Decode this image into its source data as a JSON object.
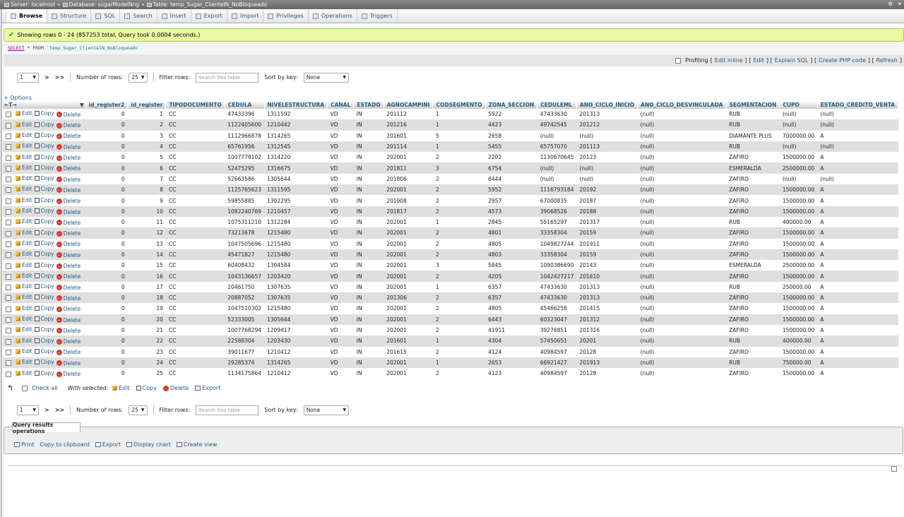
{
  "breadcrumb": {
    "server": "Server: localhost",
    "database": "Database: sugarModelNng",
    "table": "Table: temp_Sugar_ClienteIN_NoBloqueado"
  },
  "tabs": [
    {
      "label": "Browse",
      "icon": "browse-icon",
      "active": true
    },
    {
      "label": "Structure",
      "icon": "structure-icon"
    },
    {
      "label": "SQL",
      "icon": "sql-icon"
    },
    {
      "label": "Search",
      "icon": "search-icon"
    },
    {
      "label": "Insert",
      "icon": "insert-icon"
    },
    {
      "label": "Export",
      "icon": "export-icon"
    },
    {
      "label": "Import",
      "icon": "import-icon"
    },
    {
      "label": "Privileges",
      "icon": "privileges-icon"
    },
    {
      "label": "Operations",
      "icon": "operations-icon"
    },
    {
      "label": "Triggers",
      "icon": "triggers-icon"
    }
  ],
  "message": "Showing rows 0 - 24 (857253 total, Query took 0.0004 seconds.)",
  "sql": {
    "keyword": "SELECT",
    "rest": " * FROM ",
    "table": "`temp_Sugar_ClienteIN_NoBloqueado`"
  },
  "profiling": {
    "label": "Profiling",
    "edit_inline": "Edit inline",
    "edit": "Edit",
    "explain": "Explain SQL",
    "php": "Create PHP code",
    "refresh": "Refresh"
  },
  "nav": {
    "page": "1",
    "next": ">",
    "last": ">>",
    "rows_label": "Number of rows:",
    "rows_value": "25",
    "filter_label": "Filter rows:",
    "filter_placeholder": "Search this table",
    "sort_label": "Sort by key:",
    "sort_value": "None"
  },
  "options_label": "+ Options",
  "actions": {
    "edit": "Edit",
    "copy": "Copy",
    "delete": "Delete"
  },
  "columns": [
    "id_register2",
    "id_register",
    "TIPODOCUMENTO",
    "CEDULA",
    "NIVELESTRUCTURA",
    "CANAL",
    "ESTADO",
    "AGNOCAMPINI",
    "CODSEGMENTO",
    "ZONA_SECCION",
    "CEDULEML",
    "ANO_CICLO_INICIO",
    "ANO_CICLO_DESVINCULADA",
    "SEGMENTACION",
    "CUPO",
    "ESTADO_CREDITO_VENTA"
  ],
  "rows": [
    [
      "0",
      "1",
      "CC",
      "47433396",
      "1311592",
      "VD",
      "IN",
      "201112",
      "1",
      "5922",
      "47433630",
      "201313",
      "(null)",
      "RUB",
      "(null)",
      "(null)"
    ],
    [
      "0",
      "2",
      "CC",
      "1122405600",
      "1210442",
      "VD",
      "IN",
      "201216",
      "1",
      "4423",
      "49742545",
      "201212",
      "(null)",
      "RUB",
      "(null)",
      "(null)"
    ],
    [
      "0",
      "3",
      "CC",
      "1112966878",
      "1314265",
      "VD",
      "IN",
      "201601",
      "5",
      "2658",
      "(null)",
      "(null)",
      "(null)",
      "DIAMANTE PLUS",
      "7000000.00",
      "A"
    ],
    [
      "0",
      "4",
      "CC",
      "65761956",
      "1312545",
      "VD",
      "IN",
      "201114",
      "1",
      "5455",
      "65757070",
      "201113",
      "(null)",
      "RUB",
      "(null)",
      "(null)"
    ],
    [
      "0",
      "5",
      "CC",
      "1007778102",
      "1314220",
      "VD",
      "IN",
      "202001",
      "2",
      "2202",
      "1130670645",
      "20123",
      "(null)",
      "ZAFIRO",
      "1500000.00",
      "A"
    ],
    [
      "0",
      "6",
      "CC",
      "52475295",
      "1316675",
      "VD",
      "IN",
      "201811",
      "3",
      "6754",
      "(null)",
      "(null)",
      "(null)",
      "ESMERALDA",
      "2500000.00",
      "A"
    ],
    [
      "0",
      "7",
      "CC",
      "52663586",
      "1305644",
      "VD",
      "IN",
      "201806",
      "2",
      "6444",
      "(null)",
      "(null)",
      "(null)",
      "ZAFIRO",
      "(null)",
      "(null)"
    ],
    [
      "0",
      "8",
      "CC",
      "1125765623",
      "1311595",
      "VD",
      "IN",
      "202001",
      "2",
      "5952",
      "1116793184",
      "20192",
      "(null)",
      "ZAFIRO",
      "1500000.00",
      "A"
    ],
    [
      "0",
      "9",
      "CC",
      "59855885",
      "1302295",
      "VD",
      "IN",
      "201908",
      "2",
      "2957",
      "67000835",
      "20187",
      "(null)",
      "ZAFIRO",
      "1500000.00",
      "A"
    ],
    [
      "0",
      "10",
      "CC",
      "1082240769",
      "1210457",
      "VD",
      "IN",
      "201817",
      "2",
      "4573",
      "39068526",
      "20188",
      "(null)",
      "ZAFIRO",
      "1500000.00",
      "A"
    ],
    [
      "0",
      "11",
      "CC",
      "1075311210",
      "1312284",
      "VD",
      "IN",
      "202001",
      "1",
      "2845",
      "55165297",
      "201317",
      "(null)",
      "RUB",
      "400000.00",
      "A"
    ],
    [
      "0",
      "12",
      "CC",
      "73213678",
      "1215480",
      "VD",
      "IN",
      "202001",
      "2",
      "4801",
      "33358304",
      "20159",
      "(null)",
      "ZAFIRO",
      "1500000.00",
      "A"
    ],
    [
      "0",
      "13",
      "CC",
      "1047505696",
      "1215480",
      "VD",
      "IN",
      "202001",
      "2",
      "4805",
      "1049827244",
      "201911",
      "(null)",
      "ZAFIRO",
      "1500000.00",
      "A"
    ],
    [
      "0",
      "14",
      "CC",
      "45471827",
      "1215480",
      "VD",
      "IN",
      "202001",
      "2",
      "4803",
      "33358304",
      "20159",
      "(null)",
      "ZAFIRO",
      "1500000.00",
      "A"
    ],
    [
      "0",
      "15",
      "CC",
      "60408432",
      "1304584",
      "VD",
      "IN",
      "202001",
      "3",
      "5845",
      "1090386690",
      "20143",
      "(null)",
      "ESMERALDA",
      "2500000.00",
      "A"
    ],
    [
      "0",
      "16",
      "CC",
      "1043136657",
      "1203420",
      "VD",
      "IN",
      "202001",
      "2",
      "4205",
      "1042427217",
      "201610",
      "(null)",
      "ZAFIRO",
      "1500000.00",
      "A"
    ],
    [
      "0",
      "17",
      "CC",
      "20461750",
      "1307635",
      "VD",
      "IN",
      "202001",
      "1",
      "6357",
      "47433630",
      "201313",
      "(null)",
      "RUB",
      "250000.00",
      "A"
    ],
    [
      "0",
      "18",
      "CC",
      "20887052",
      "1307635",
      "VD",
      "IN",
      "201306",
      "2",
      "6357",
      "47433630",
      "201313",
      "(null)",
      "ZAFIRO",
      "1500000.00",
      "A"
    ],
    [
      "0",
      "19",
      "CC",
      "1047510302",
      "1215480",
      "VD",
      "IN",
      "202001",
      "2",
      "4805",
      "45466258",
      "201415",
      "(null)",
      "ZAFIRO",
      "1500000.00",
      "A"
    ],
    [
      "0",
      "20",
      "CC",
      "52333005",
      "1305644",
      "VD",
      "IN",
      "202001",
      "2",
      "6443",
      "60323047",
      "201312",
      "(null)",
      "ZAFIRO",
      "1500000.00",
      "A"
    ],
    [
      "0",
      "21",
      "CC",
      "1007768294",
      "1209417",
      "VD",
      "IN",
      "202001",
      "2",
      "41911",
      "39276851",
      "201316",
      "(null)",
      "ZAFIRO",
      "1500000.00",
      "A"
    ],
    [
      "0",
      "22",
      "CC",
      "22588304",
      "1203430",
      "VD",
      "IN",
      "201601",
      "1",
      "4304",
      "57450651",
      "20201",
      "(null)",
      "RUB",
      "400000.00",
      "A"
    ],
    [
      "0",
      "23",
      "CC",
      "39011677",
      "1210412",
      "VD",
      "IN",
      "201615",
      "2",
      "4124",
      "40984597",
      "20128",
      "(null)",
      "ZAFIRO",
      "1500000.00",
      "A"
    ],
    [
      "0",
      "24",
      "CC",
      "29285374",
      "1314265",
      "VD",
      "IN",
      "202001",
      "1",
      "2653",
      "66921427",
      "201913",
      "(null)",
      "RUB",
      "750000.00",
      "A"
    ],
    [
      "0",
      "25",
      "CC",
      "1134175864",
      "1210412",
      "VD",
      "IN",
      "202001",
      "2",
      "4123",
      "40984597",
      "20128",
      "(null)",
      "ZAFIRO",
      "1500000.00",
      "A"
    ]
  ],
  "bulk": {
    "check_all": "Check all",
    "with_selected": "With selected:",
    "edit": "Edit",
    "copy": "Copy",
    "delete": "Delete",
    "export": "Export"
  },
  "qro": {
    "title": "Query results operations",
    "print": "Print",
    "clipboard": "Copy to clipboard",
    "export": "Export",
    "chart": "Display chart",
    "view": "Create view"
  }
}
